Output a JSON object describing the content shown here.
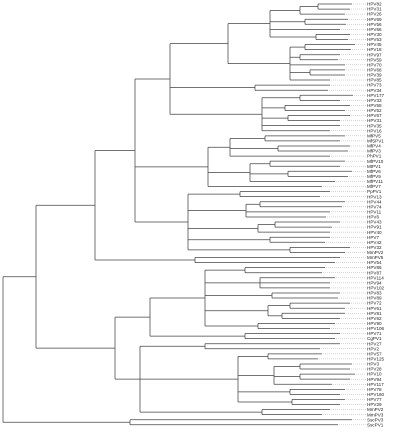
{
  "leaves": [
    "HPV82",
    "HPV31",
    "HPV26",
    "HPV69",
    "HPV56",
    "HPV66",
    "HPV30",
    "HPV53",
    "HPV45",
    "HPV18",
    "HPV97",
    "HPV59",
    "HPV70",
    "HPV68",
    "HPV39",
    "HPV85",
    "HPV73",
    "HPV34",
    "HPV177",
    "HPV33",
    "HPV58",
    "HPV52",
    "HPV67",
    "HPV31",
    "HPV35",
    "HPV16",
    "MfPV5",
    "MfSPV1",
    "MfPV4",
    "MfPV3",
    "PhPV1",
    "MfPV10",
    "MtPV1",
    "MfPV6",
    "MfPV9",
    "MfPV11",
    "MfPV7",
    "PpPV1",
    "HPV13",
    "HPV44",
    "HPV74",
    "HPV11",
    "HPV6",
    "HPV43",
    "HPV91",
    "HPV40",
    "HPV7",
    "HPV42",
    "HPV32",
    "MmPV2",
    "MmPV5",
    "HPV54",
    "HPV86",
    "HPV87",
    "HPV114",
    "HPV94",
    "HPV102",
    "HPV83",
    "HPV89",
    "HPV72",
    "HPV61",
    "HPV81",
    "HPV62",
    "HPV90",
    "HPV106",
    "HPV71",
    "CgPV1",
    "HPV27",
    "HPV2",
    "HPV57",
    "HPV125",
    "HPV3",
    "HPV28",
    "HPV10",
    "HPV94",
    "HPV117",
    "HPV78",
    "HPV160",
    "HPV77",
    "HPV29",
    "MmPV2",
    "MmPV3",
    "SscPV3",
    "SscPV1"
  ],
  "colors": {
    "branch": "#444444",
    "dots": "#9a9a9a",
    "label": "#222222"
  }
}
